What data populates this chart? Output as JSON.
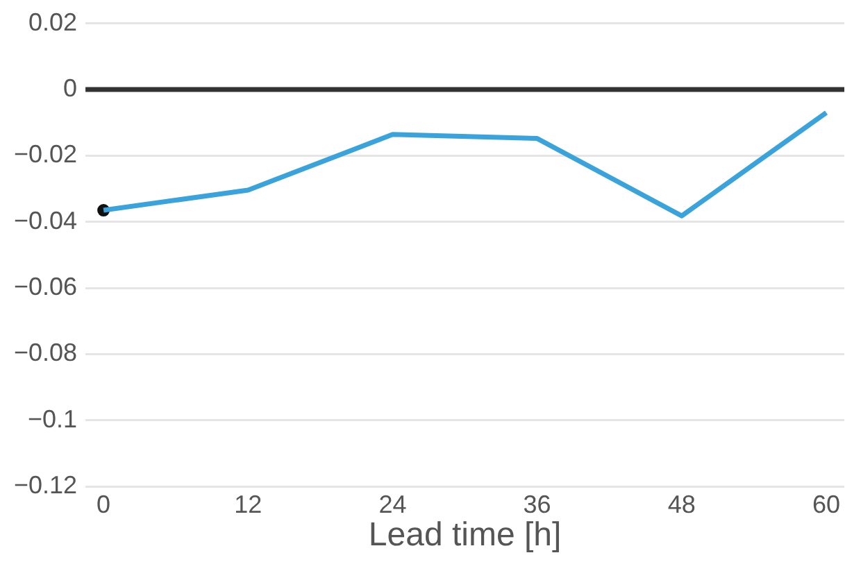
{
  "chart_data": {
    "type": "line",
    "xlabel": "Lead time [h]",
    "x": [
      0,
      12,
      24,
      36,
      48,
      60
    ],
    "series": [
      {
        "color": "#3aa3dc",
        "values": [
          -0.0365,
          -0.0304,
          -0.0136,
          -0.0148,
          -0.0382,
          -0.007
        ]
      },
      {
        "type": "scatter",
        "color": "#111111",
        "x": [
          0
        ],
        "values": [
          -0.0365
        ]
      }
    ],
    "xlim": [
      -1.5,
      61.5
    ],
    "xticks": [
      0,
      12,
      24,
      36,
      48,
      60
    ],
    "ylim": [
      -0.12,
      0.02
    ],
    "yticks": [
      {
        "value": -0.12,
        "label": "−0.12"
      },
      {
        "value": -0.1,
        "label": "−0.1"
      },
      {
        "value": -0.08,
        "label": "−0.08"
      },
      {
        "value": -0.06,
        "label": "−0.06"
      },
      {
        "value": -0.04,
        "label": "−0.04"
      },
      {
        "value": -0.02,
        "label": "−0.02"
      },
      0,
      0.02
    ],
    "ref_lines": [
      {
        "axis": "y",
        "value": 0,
        "color": "#333333"
      }
    ],
    "grid": "y",
    "legend": false,
    "line_style": "solid"
  }
}
